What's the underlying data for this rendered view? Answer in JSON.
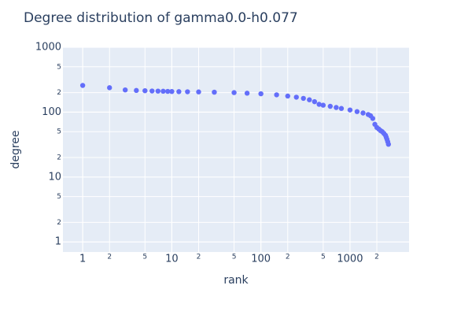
{
  "chart_data": {
    "type": "scatter",
    "title": "Degree distribution of gamma0.0-h0.077",
    "x_label": "rank",
    "y_label": "degree",
    "log_x": true,
    "log_y": true,
    "grid": true,
    "xlim": [
      0.6,
      4600
    ],
    "ylim": [
      0.7,
      1000
    ],
    "xticks": [
      1,
      2,
      5,
      10,
      {
        "value": 20,
        "label": "2"
      },
      {
        "value": 50,
        "label": "5"
      },
      100,
      {
        "value": 200,
        "label": "2"
      },
      {
        "value": 500,
        "label": "5"
      },
      1000,
      {
        "value": 2000,
        "label": "2"
      }
    ],
    "yticks": [
      1,
      2,
      5,
      10,
      {
        "value": 20,
        "label": "2"
      },
      {
        "value": 50,
        "label": "5"
      },
      100,
      {
        "value": 200,
        "label": "2"
      },
      {
        "value": 500,
        "label": "5"
      },
      1000
    ],
    "series": [
      {
        "color": "#636efa",
        "x": [
          1,
          2,
          3,
          4,
          5,
          6,
          7,
          8,
          9,
          10,
          12,
          15,
          20,
          30,
          50,
          70,
          100,
          150,
          200,
          250,
          300,
          350,
          400,
          450,
          500,
          600,
          700,
          800,
          1000,
          1200,
          1400,
          1600,
          1700,
          1800,
          1900,
          2000,
          2100,
          2200,
          2300,
          2400,
          2500,
          2550,
          2600,
          2650,
          2700
        ],
        "values": [
          258,
          238,
          220,
          216,
          214,
          212,
          211,
          210,
          209,
          208,
          207,
          206,
          205,
          203,
          200,
          196,
          192,
          185,
          177,
          170,
          163,
          155,
          145,
          132,
          128,
          123,
          118,
          114,
          108,
          102,
          97,
          92,
          88,
          80,
          65,
          58,
          55,
          52,
          50,
          47,
          44,
          41,
          38,
          35,
          32
        ]
      }
    ]
  }
}
